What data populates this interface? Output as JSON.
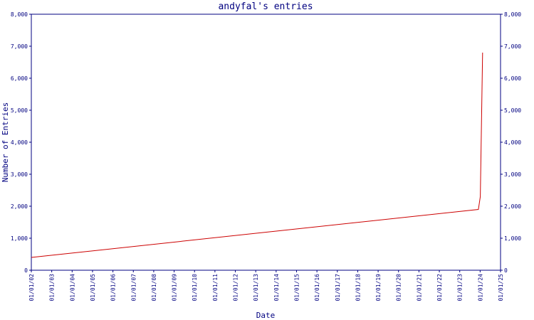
{
  "chart_data": {
    "type": "line",
    "title": "andyfal's entries",
    "xlabel": "Date",
    "ylabel": "Number of Entries",
    "x_ticks": [
      "01/01/02",
      "01/01/03",
      "01/01/04",
      "01/01/05",
      "01/01/06",
      "01/01/07",
      "01/01/08",
      "01/01/09",
      "01/01/10",
      "01/01/11",
      "01/01/12",
      "01/01/13",
      "01/01/14",
      "01/01/15",
      "01/01/16",
      "01/01/17",
      "01/01/18",
      "01/01/19",
      "01/01/20",
      "01/01/21",
      "01/01/22",
      "01/01/23",
      "01/01/24",
      "01/01/25"
    ],
    "xlim": [
      "2002-01-01",
      "2025-01-01"
    ],
    "y_ticks": [
      "0",
      "1,000",
      "2,000",
      "3,000",
      "4,000",
      "5,000",
      "6,000",
      "7,000",
      "8,000"
    ],
    "y_tick_values": [
      0,
      1000,
      2000,
      3000,
      4000,
      5000,
      6000,
      7000,
      8000
    ],
    "ylim": [
      0,
      8000
    ],
    "grid": false,
    "colors": {
      "axis": "#000080",
      "line": "#cc0000",
      "text": "#000080"
    },
    "series": [
      {
        "x": [
          "2002-01-01",
          "2023-12-01",
          "2024-01-05",
          "2024-02-15"
        ],
        "y": [
          400,
          1900,
          2300,
          6800
        ]
      }
    ]
  }
}
